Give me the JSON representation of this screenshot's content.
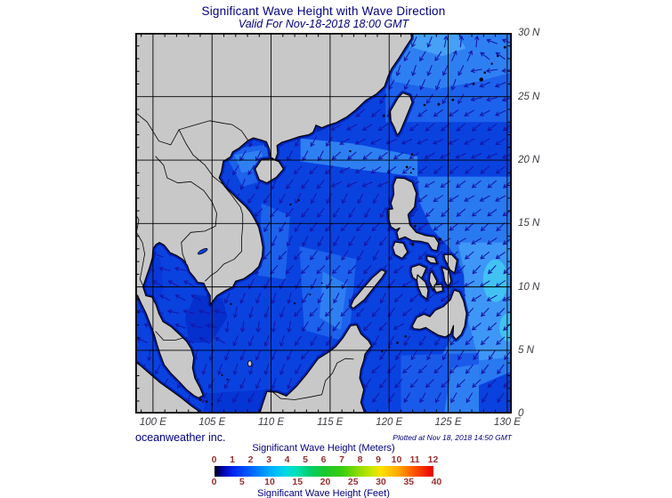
{
  "title": {
    "text": "Significant Wave Height with Wave Direction",
    "subtitle": "Valid For Nov-18-2018 18:00 GMT"
  },
  "map": {
    "x_axis": {
      "labels": [
        "100 E",
        "105 E",
        "110 E",
        "115 E",
        "120 E",
        "125 E",
        "130 E"
      ],
      "values": [
        100,
        105,
        110,
        115,
        120,
        125,
        130
      ]
    },
    "y_axis": {
      "labels": [
        "0",
        "5 N",
        "10 N",
        "15 N",
        "20 N",
        "25 N",
        "30 N"
      ],
      "values": [
        0,
        5,
        10,
        15,
        20,
        25,
        30
      ]
    },
    "lon_range": [
      98.5,
      130.4
    ],
    "lat_range": [
      0,
      30
    ]
  },
  "footer": {
    "credit": "oceanweather inc.",
    "plotted": "Plotted at Nov 18, 2018 14:50 GMT"
  },
  "legend": {
    "meters_title": "Significant Wave Height (Meters)",
    "feet_title": "Significant Wave Height (Feet)",
    "meters_ticks": [
      0,
      1,
      2,
      3,
      4,
      5,
      6,
      7,
      8,
      9,
      10,
      11,
      12
    ],
    "feet_ticks": [
      0,
      5,
      10,
      15,
      20,
      25,
      30,
      35,
      40
    ],
    "gradient_stops": [
      [
        "0%",
        "#000000"
      ],
      [
        "3%",
        "#000099"
      ],
      [
        "8%",
        "#0022EE"
      ],
      [
        "17%",
        "#0066FF"
      ],
      [
        "25%",
        "#00AAFF"
      ],
      [
        "32%",
        "#00D8E8"
      ],
      [
        "38%",
        "#00E0B0"
      ],
      [
        "43%",
        "#00D070"
      ],
      [
        "50%",
        "#18C830"
      ],
      [
        "58%",
        "#38CC10"
      ],
      [
        "66%",
        "#90DD00"
      ],
      [
        "72%",
        "#CCE800"
      ],
      [
        "76%",
        "#FFE000"
      ],
      [
        "84%",
        "#FFA800"
      ],
      [
        "91%",
        "#FF5500"
      ],
      [
        "100%",
        "#E60000"
      ]
    ]
  },
  "colors": {
    "ocean_base": "#0A42E0",
    "land": "#C8C8C8",
    "coastal_band": "#0020B0",
    "arrow": "#1616A6",
    "title_text": "#000080",
    "axis_text": "#3A3A42",
    "legend_tick_text": "#993030"
  }
}
